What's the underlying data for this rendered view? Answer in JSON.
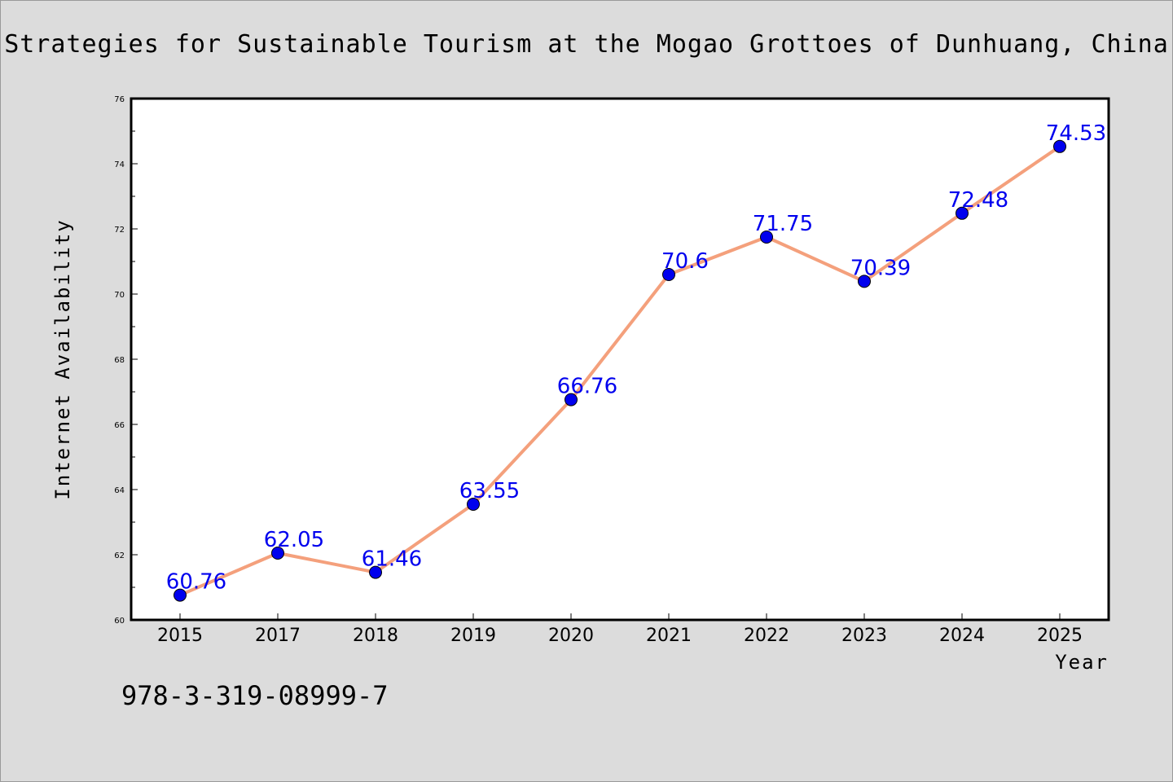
{
  "colors": {
    "background": "#dcdcdc",
    "plot_area": "#ffffff",
    "line": "#f4a07c",
    "marker": "#0000ee",
    "data_label": "#0000ee"
  },
  "footnote": "978-3-319-08999-7",
  "chart_data": {
    "type": "line",
    "title": "Strategies for Sustainable Tourism at the Mogao Grottoes of Dunhuang, China",
    "xlabel": "Year",
    "ylabel": "Internet Availability",
    "categories": [
      "2015",
      "2017",
      "2018",
      "2019",
      "2020",
      "2021",
      "2022",
      "2023",
      "2024",
      "2025"
    ],
    "series": [
      {
        "values": [
          60.76,
          62.05,
          61.46,
          63.55,
          66.76,
          70.6,
          71.75,
          70.39,
          72.48,
          74.53
        ],
        "labels": [
          "60.76",
          "62.05",
          "61.46",
          "63.55",
          "66.76",
          "70.6",
          "71.75",
          "70.39",
          "72.48",
          "74.53"
        ]
      }
    ],
    "ylim": [
      60,
      76
    ],
    "yticks": [
      "60",
      "62",
      "64",
      "66",
      "68",
      "70",
      "72",
      "74",
      "76"
    ],
    "grid": false,
    "legend": "none"
  }
}
